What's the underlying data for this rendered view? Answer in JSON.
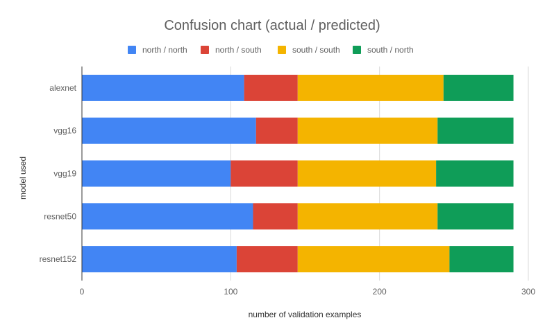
{
  "chart_data": {
    "type": "bar",
    "orientation": "horizontal",
    "stacked": true,
    "title": "Confusion chart (actual / predicted)",
    "xlabel": "number of validation examples",
    "ylabel": "model used",
    "xlim": [
      0,
      300
    ],
    "xticks": [
      0,
      100,
      200,
      300
    ],
    "grid": true,
    "legend_position": "top",
    "categories": [
      "alexnet",
      "vgg16",
      "vgg19",
      "resnet50",
      "resnet152"
    ],
    "series": [
      {
        "name": "north / north",
        "color": "#4285f4",
        "values": [
          109,
          117,
          100,
          115,
          104
        ]
      },
      {
        "name": "north / south",
        "color": "#db4437",
        "values": [
          36,
          28,
          45,
          30,
          41
        ]
      },
      {
        "name": "south / south",
        "color": "#f4b400",
        "values": [
          98,
          94,
          93,
          94,
          102
        ]
      },
      {
        "name": "south / north",
        "color": "#0f9d58",
        "values": [
          47,
          51,
          52,
          51,
          43
        ]
      }
    ]
  }
}
